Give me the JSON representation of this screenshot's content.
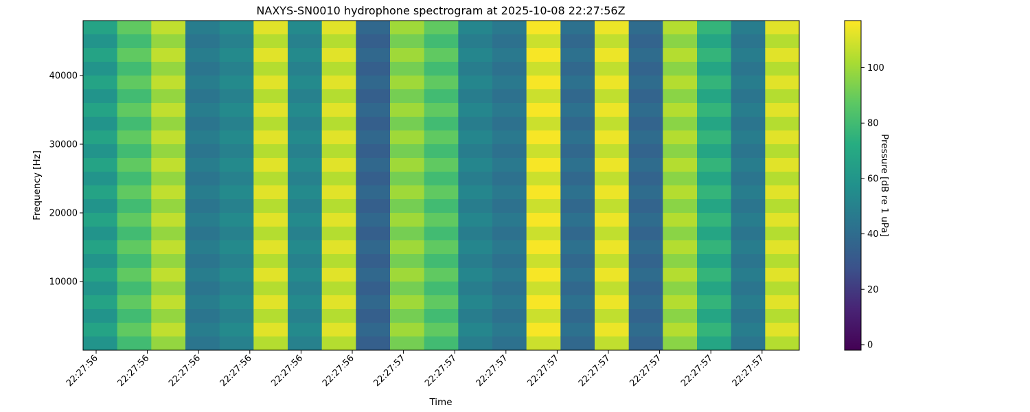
{
  "chart_data": {
    "type": "heatmap",
    "title": "NAXYS-SN0010 hydrophone spectrogram at 2025-10-08 22:27:56Z",
    "xlabel": "Time",
    "ylabel": "Frequency [Hz]",
    "colorbar_label": "Pressure [dB re 1 uPa]",
    "colormap": "viridis",
    "ylim": [
      0,
      48000
    ],
    "yticks": [
      10000,
      20000,
      30000,
      40000
    ],
    "xtick_labels": [
      "22:27:56",
      "22:27:56",
      "22:27:56",
      "22:27:56",
      "22:27:56",
      "22:27:56",
      "22:27:57",
      "22:27:57",
      "22:27:57",
      "22:27:57",
      "22:27:57",
      "22:27:57",
      "22:27:57",
      "22:27:57"
    ],
    "colorbar_range": [
      -2,
      117
    ],
    "colorbar_ticks": [
      0,
      20,
      40,
      60,
      80,
      100
    ],
    "background_level_db": 44,
    "time_bands": [
      {
        "intensity_db": 63
      },
      {
        "intensity_db": 84
      },
      {
        "intensity_db": 102
      },
      {
        "intensity_db": 46
      },
      {
        "intensity_db": 52
      },
      {
        "intensity_db": 108
      },
      {
        "intensity_db": 52
      },
      {
        "intensity_db": 108
      },
      {
        "intensity_db": 36
      },
      {
        "intensity_db": 96
      },
      {
        "intensity_db": 84
      },
      {
        "intensity_db": 50
      },
      {
        "intensity_db": 44
      },
      {
        "intensity_db": 112
      },
      {
        "intensity_db": 40
      },
      {
        "intensity_db": 110
      },
      {
        "intensity_db": 38
      },
      {
        "intensity_db": 100
      },
      {
        "intensity_db": 72
      },
      {
        "intensity_db": 46
      },
      {
        "intensity_db": 108
      }
    ]
  }
}
